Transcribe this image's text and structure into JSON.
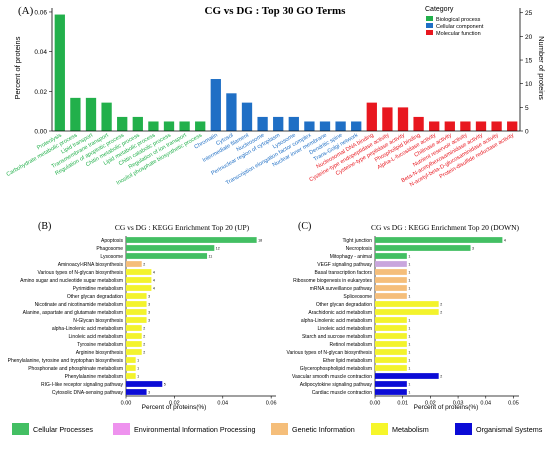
{
  "chart_data": [
    {
      "panel": "(A)",
      "type": "bar",
      "title": "CG vs DG : Top 30 GO  Terms",
      "ylabel": "Percent of proteins",
      "y2label": "Number of proteins",
      "ylim": [
        0,
        0.062
      ],
      "y2lim": [
        0,
        26
      ],
      "yticks": [
        "0.00",
        "0.02",
        "0.04",
        "0.06"
      ],
      "y2ticks": [
        "0",
        "5",
        "10",
        "15",
        "20",
        "25"
      ],
      "legend": {
        "title": "Category",
        "position": "top-right",
        "items": [
          {
            "label": "Biological process",
            "color": "#22b04b"
          },
          {
            "label": "Cellular component",
            "color": "#1f6fc5"
          },
          {
            "label": "Molecular function",
            "color": "#e8171f"
          }
        ]
      },
      "categories": [
        "Proteolysis",
        "Carbohydrate metabolic process",
        "Lipid transport",
        "Transmembrane transport",
        "Regulation of apoptotic process",
        "Chitin metabolic process",
        "Lipid metabolic process",
        "Chitin catabolic process",
        "Regulation of ion transport",
        "Inositol phosphate biosynthetic process",
        "Chromatin",
        "Cytosol",
        "Intermediate filament",
        "Nucleosome",
        "Perinuclear region of cytoplasm",
        "Lysosome",
        "Transcription elongation factor complex",
        "Nuclear inner membrane",
        "Dendritic spine",
        "Trans-Golgi network",
        "Nucleosomal DNA binding",
        "Cysteine-type endopeptidase activity",
        "Cysteine-type peptidase activity",
        "Phospholipid binding",
        "Alpha-L-fucosidase activity",
        "Chitinase activity",
        "Nutrient reservoir activity",
        "Beta-N-acetylhexosaminidase activity",
        "N-acetyl-beta-D-glucosaminidase activity",
        "Protein-disulfide reductase activity"
      ],
      "groups": [
        "Biological process",
        "Biological process",
        "Biological process",
        "Biological process",
        "Biological process",
        "Biological process",
        "Biological process",
        "Biological process",
        "Biological process",
        "Biological process",
        "Cellular component",
        "Cellular component",
        "Cellular component",
        "Cellular component",
        "Cellular component",
        "Cellular component",
        "Cellular component",
        "Cellular component",
        "Cellular component",
        "Cellular component",
        "Molecular function",
        "Molecular function",
        "Molecular function",
        "Molecular function",
        "Molecular function",
        "Molecular function",
        "Molecular function",
        "Molecular function",
        "Molecular function",
        "Molecular function"
      ],
      "values": [
        0.0587,
        0.0167,
        0.0167,
        0.0143,
        0.0071,
        0.0071,
        0.0048,
        0.0048,
        0.0048,
        0.0048,
        0.0262,
        0.019,
        0.0143,
        0.0071,
        0.0071,
        0.0071,
        0.0048,
        0.0048,
        0.0048,
        0.0048,
        0.0143,
        0.0119,
        0.0119,
        0.0071,
        0.0048,
        0.0048,
        0.0048,
        0.0048,
        0.0048,
        0.0048
      ]
    },
    {
      "panel": "(B)",
      "type": "bar",
      "orientation": "horizontal",
      "title": "CG vs DG : KEGG Enrichment Top 20 (UP)",
      "xlabel": "Percent of proteins(%)",
      "xlim": [
        0,
        0.062
      ],
      "xticks": [
        "0.00",
        "0.02",
        "0.04",
        "0.06"
      ],
      "categories": [
        "Apoptosis",
        "Phagosome",
        "Lysosome",
        "Aminoacyl-tRNA biosynthesis",
        "Various types of N-glycan biosynthesis",
        "Amino sugar and nucleotide sugar metabolism",
        "Pyrimidine metabolism",
        "Other glycan degradation",
        "Nicotinate and nicotinamide metabolism",
        "Alanine, aspartate and glutamate metabolism",
        "N-Glycan biosynthesis",
        "alpha-Linolenic acid metabolism",
        "Linoleic acid metabolism",
        "Tyrosine metabolism",
        "Arginine biosynthesis",
        "Phenylalanine, tyrosine and tryptophan biosynthesis",
        "Phosphonate and phosphinate metabolism",
        "Phenylalanine metabolism",
        "RIG-I-like receptor signaling pathway",
        "Cytosolic DNA-sensing pathway"
      ],
      "groups": [
        "Cellular Processes",
        "Cellular Processes",
        "Cellular Processes",
        "Genetic Information",
        "Metabolism",
        "Metabolism",
        "Metabolism",
        "Metabolism",
        "Metabolism",
        "Metabolism",
        "Metabolism",
        "Metabolism",
        "Metabolism",
        "Metabolism",
        "Metabolism",
        "Metabolism",
        "Metabolism",
        "Metabolism",
        "Organismal Systems",
        "Organismal Systems"
      ],
      "values": [
        0.054,
        0.0365,
        0.0335,
        0.0065,
        0.0105,
        0.0105,
        0.0105,
        0.0085,
        0.0085,
        0.0085,
        0.0085,
        0.0065,
        0.0065,
        0.0065,
        0.0065,
        0.004,
        0.004,
        0.004,
        0.015,
        0.0085
      ],
      "bar_labels": [
        "18",
        "12",
        "11",
        "2",
        "4",
        "4",
        "4",
        "3",
        "3",
        "3",
        "3",
        "2",
        "2",
        "2",
        "2",
        "1",
        "1",
        "1",
        "5",
        "3"
      ]
    },
    {
      "panel": "(C)",
      "type": "bar",
      "orientation": "horizontal",
      "title": "CG vs DG : KEGG Enrichment Top 20 (DOWN)",
      "xlabel": "Percent of proteins(%)",
      "xlim": [
        0,
        0.052
      ],
      "xticks": [
        "0.00",
        "0.01",
        "0.02",
        "0.03",
        "0.04",
        "0.05"
      ],
      "categories": [
        "Tight junction",
        "Necroptosis",
        "Mitophagy - animal",
        "VEGF signaling pathway",
        "Basal transcription factors",
        "Ribosome biogenesis in eukaryotes",
        "mRNA surveillance pathway",
        "Spliceosome",
        "Other glycan degradation",
        "Arachidonic acid metabolism",
        "alpha-Linolenic acid metabolism",
        "Linoleic acid metabolism",
        "Starch and sucrose metabolism",
        "Retinol metabolism",
        "Various types of N-glycan biosynthesis",
        "Ether lipid metabolism",
        "Glycerophospholipid metabolism",
        "Vascular smooth muscle contraction",
        "Adipocytokine signaling pathway",
        "Cardiac muscle contraction"
      ],
      "groups": [
        "Cellular Processes",
        "Cellular Processes",
        "Cellular Processes",
        "Environmental Information Processing",
        "Genetic Information",
        "Genetic Information",
        "Genetic Information",
        "Genetic Information",
        "Metabolism",
        "Metabolism",
        "Metabolism",
        "Metabolism",
        "Metabolism",
        "Metabolism",
        "Metabolism",
        "Metabolism",
        "Metabolism",
        "Organismal Systems",
        "Organismal Systems",
        "Organismal Systems"
      ],
      "values": [
        0.046,
        0.0345,
        0.0115,
        0.0115,
        0.0115,
        0.0115,
        0.0115,
        0.0115,
        0.023,
        0.023,
        0.0115,
        0.0115,
        0.0115,
        0.0115,
        0.0115,
        0.0115,
        0.0115,
        0.023,
        0.0115,
        0.0115
      ],
      "bar_labels": [
        "4",
        "3",
        "1",
        "1",
        "1",
        "1",
        "1",
        "1",
        "2",
        "2",
        "1",
        "1",
        "1",
        "1",
        "1",
        "1",
        "1",
        "2",
        "1",
        "1"
      ]
    }
  ],
  "kegg_legend": [
    {
      "label": "Cellular Processes",
      "color": "#43bf63"
    },
    {
      "label": "Environmental Information Processing",
      "color": "#ee92ee"
    },
    {
      "label": "Genetic Information",
      "color": "#f5be7a"
    },
    {
      "label": "Metabolism",
      "color": "#f6f62a"
    },
    {
      "label": "Organismal Systems",
      "color": "#0b0bd6"
    }
  ],
  "colors": {
    "Biological process": "#22b04b",
    "Cellular component": "#1f6fc5",
    "Molecular function": "#e8171f",
    "Cellular Processes": "#43bf63",
    "Environmental Information Processing": "#c9a6dd",
    "Genetic Information": "#f5be7a",
    "Metabolism": "#f3f32c",
    "Organismal Systems": "#0b0bd6"
  }
}
